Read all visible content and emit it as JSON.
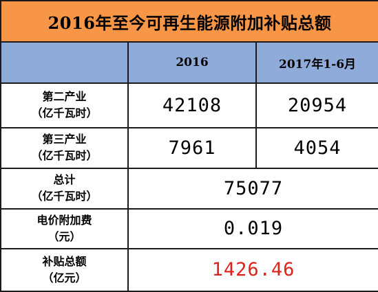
{
  "title": "2016年至今可再生能源附加补贴总额",
  "header": {
    "empty": "",
    "col_2016": "2016",
    "col_2017": "2017年1-6月"
  },
  "rows": [
    {
      "label_line1": "第二产业",
      "label_line2": "（亿千瓦时）",
      "v2016": "42108",
      "v2017": "20954"
    },
    {
      "label_line1": "第三产业",
      "label_line2": "（亿千瓦时）",
      "v2016": "7961",
      "v2017": "4054"
    },
    {
      "label_line1": "总计",
      "label_line2": "（亿千瓦时）",
      "value": "75077"
    },
    {
      "label_line1": "电价附加费",
      "label_line2": "（元）",
      "value": "0.019"
    },
    {
      "label_line1": "补贴总额",
      "label_line2": "（亿元）",
      "value": "1426.46"
    }
  ],
  "colors": {
    "title_bg": "#f79646",
    "header_bg": "#8fabd9",
    "highlight_value": "#e0201b"
  }
}
